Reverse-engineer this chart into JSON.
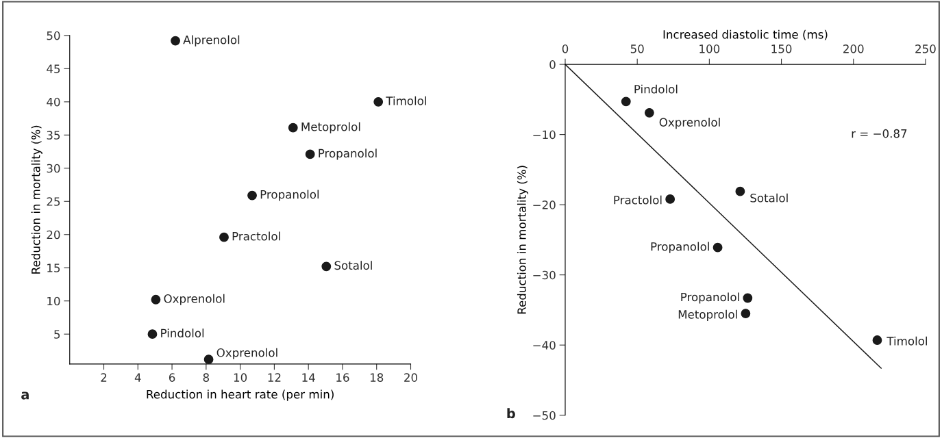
{
  "chart_data": [
    {
      "type": "scatter",
      "xlabel": "Reduction in heart rate (per min)",
      "ylabel": "Reduction in mortality (%)",
      "xlim": [
        0,
        20
      ],
      "ylim": [
        0.5,
        50
      ],
      "xticks": [
        2,
        4,
        6,
        8,
        10,
        12,
        14,
        16,
        18,
        20
      ],
      "yticks": [
        5,
        10,
        15,
        20,
        25,
        30,
        35,
        40,
        45,
        50
      ],
      "grid": false,
      "marker": "circle",
      "series": [
        {
          "color": "#1a1a1a",
          "x": [
            6.2,
            18.1,
            13.1,
            14.1,
            10.7,
            9.05,
            15.05,
            5.05,
            4.85,
            8.15
          ],
          "values": [
            49.2,
            40,
            36.1,
            32.1,
            25.9,
            19.6,
            15.2,
            10.2,
            5.0,
            1.2
          ]
        }
      ],
      "annotations": [
        {
          "text": "Alprenolol",
          "x": 6.2,
          "y": 49.2
        },
        {
          "text": "Timolol",
          "x": 18.1,
          "y": 40
        },
        {
          "text": "Metoprolol",
          "x": 13.1,
          "y": 36.1
        },
        {
          "text": "Propanolol",
          "x": 14.1,
          "y": 32.1
        },
        {
          "text": "Propanolol",
          "x": 10.7,
          "y": 25.9
        },
        {
          "text": "Practolol",
          "x": 9.05,
          "y": 19.6
        },
        {
          "text": "Sotalol",
          "x": 15.05,
          "y": 15.2
        },
        {
          "text": "Oxprenolol",
          "x": 5.05,
          "y": 10.2
        },
        {
          "text": "Pindolol",
          "x": 4.85,
          "y": 5.0
        },
        {
          "text": "Oxprenolol",
          "x": 8.15,
          "y": 1.2
        },
        "a"
      ]
    },
    {
      "type": "scatter",
      "xlabel": "Increased diastolic time (ms)",
      "ylabel": "Reduction in mortality (%)",
      "xlim": [
        0,
        250
      ],
      "xticks": [
        0,
        50,
        100,
        150,
        200,
        250
      ],
      "ylim": [
        -50,
        0
      ],
      "yticks": [
        0,
        {
          "value": -10,
          "label": "−10"
        },
        {
          "value": -20,
          "label": "−20"
        },
        {
          "value": -30,
          "label": "−30"
        },
        {
          "value": -40,
          "label": "−40"
        },
        {
          "value": -50,
          "label": "−50"
        }
      ],
      "grid": false,
      "marker": "circle",
      "series": [
        {
          "color": "#1a1a1a",
          "x": [
            42.2,
            58.4,
            72.8,
            121.4,
            105.8,
            126.6,
            125.2,
            216.5
          ],
          "values": [
            -5.3,
            -6.9,
            -19.2,
            -18.1,
            -26.1,
            -33.3,
            -35.5,
            -39.3
          ]
        },
        {
          "type": "line",
          "color": "#1a1a1a",
          "line_style": "solid",
          "marker": "none",
          "x": [
            0,
            219.2
          ],
          "values": [
            0,
            -43.3
          ]
        }
      ],
      "annotations": [
        {
          "text": "Pindolol",
          "x": 42.2,
          "y": -5.3
        },
        {
          "text": "Oxprenolol",
          "x": 58.4,
          "y": -6.9
        },
        {
          "text": "Practolol",
          "x": 72.8,
          "y": -19.2
        },
        {
          "text": "Sotalol",
          "x": 121.4,
          "y": -18.1
        },
        {
          "text": "Propanolol",
          "x": 105.8,
          "y": -26.1
        },
        {
          "text": "Propanolol",
          "x": 126.6,
          "y": -33.3
        },
        {
          "text": "Metoprolol",
          "x": 125.2,
          "y": -35.5
        },
        {
          "text": "Timolol",
          "x": 216.5,
          "y": -39.3
        },
        "r = −0.87",
        "b"
      ]
    }
  ]
}
